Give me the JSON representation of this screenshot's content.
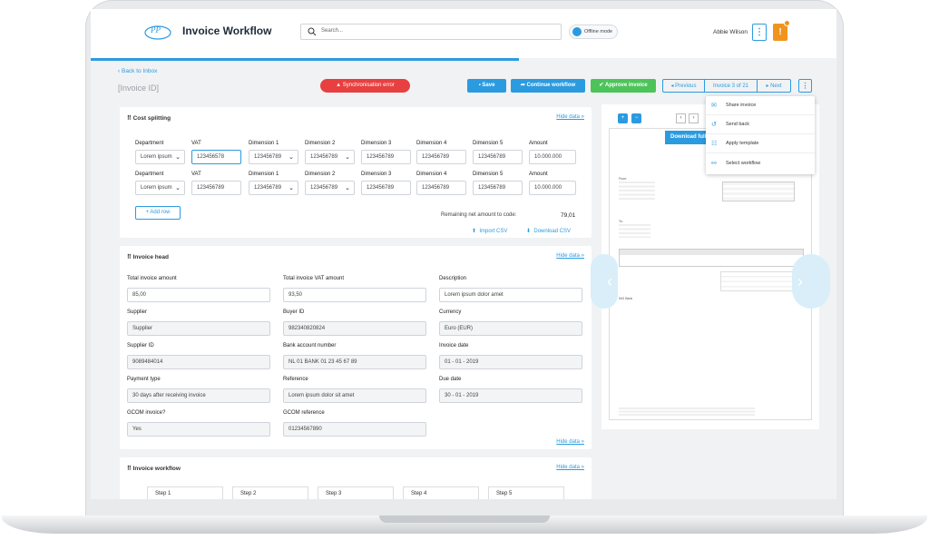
{
  "app": {
    "title": "Invoice Workflow",
    "search_placeholder": "Search...",
    "offline": "Offline mode",
    "user": "Abbie Wilson",
    "kebab": "⋮",
    "warn": "!"
  },
  "header": {
    "back": "Back to Inbox",
    "invoice_id": "[Invoice ID]",
    "sync_error": "Synchronisation error",
    "save": "Save",
    "continue": "Continue workflow",
    "approve": "Approve invoice",
    "previous": "Previous",
    "counter": "Invoice 3 of 21",
    "next": "Next"
  },
  "cost": {
    "title": "Cost splitting",
    "hide": "Hide data »",
    "headers": [
      "Department",
      "VAT",
      "Dimension 1",
      "Dimension 2",
      "Dimension 3",
      "Dimension 4",
      "Dimension 5",
      "Amount"
    ],
    "row1": [
      "Lorem ipsum",
      "123456578",
      "123456789",
      "123456789",
      "123456789",
      "123456789",
      "123456789",
      "10.000.000"
    ],
    "row2": [
      "Lorem ipsum",
      "123456789",
      "123456789",
      "123456789",
      "123456789",
      "123456789",
      "123456789",
      "10.000.000"
    ],
    "add_row": "Add row",
    "remaining_label": "Remaining net amount to code:",
    "remaining_value": "79,01",
    "import": "Import CSV",
    "download": "Download CSV"
  },
  "head": {
    "title": "Invoice head",
    "hide": "Hide data »",
    "hide2": "Hide data »",
    "fields": [
      {
        "label": "Total invoice amount",
        "value": "85,00"
      },
      {
        "label": "Total invoice VAT amount",
        "value": "93,50"
      },
      {
        "label": "Description",
        "value": "Lorem ipsum dolor amet"
      },
      {
        "label": "Supplier",
        "value": "Supplier"
      },
      {
        "label": "Buyer ID",
        "value": "982340820824"
      },
      {
        "label": "Currency",
        "value": "Euro (EUR)"
      },
      {
        "label": "Supplier ID",
        "value": "9089484014"
      },
      {
        "label": "Bank account number",
        "value": "NL 01 BANK 01 23 45 67 89"
      },
      {
        "label": "Invoice date",
        "value": "01 - 01 - 2019"
      },
      {
        "label": "Payment type",
        "value": "30 days after receiving invoice"
      },
      {
        "label": "Reference",
        "value": "Lorem ipsum dolor sit amet"
      },
      {
        "label": "Due date",
        "value": "30 - 01 - 2019"
      },
      {
        "label": "GCOM invoice?",
        "value": "Yes"
      },
      {
        "label": "GCOM reference",
        "value": "01234567890"
      }
    ]
  },
  "workflow": {
    "title": "Invoice workflow",
    "hide": "Hide data »",
    "steps": [
      "Step 1",
      "Step 2",
      "Step 3",
      "Step 4",
      "Step 5"
    ]
  },
  "viewer": {
    "download": "Download full",
    "prev_page": "‹",
    "next_page": "›",
    "from": "From:",
    "to": "To:",
    "bank": "ING Bank",
    "menu": [
      "Share invoice",
      "Send back",
      "Apply template",
      "Select workflow"
    ]
  }
}
